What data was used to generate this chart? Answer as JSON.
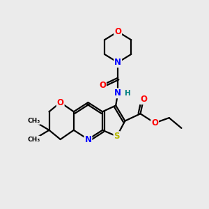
{
  "bg_color": "#ebebeb",
  "atom_colors": {
    "C": "#000000",
    "N": "#0000ff",
    "O": "#ff0000",
    "S": "#b8b800",
    "H": "#008080"
  },
  "bond_color": "#000000",
  "bond_width": 1.6,
  "font_size_atom": 8.5,
  "font_size_small": 7.5
}
